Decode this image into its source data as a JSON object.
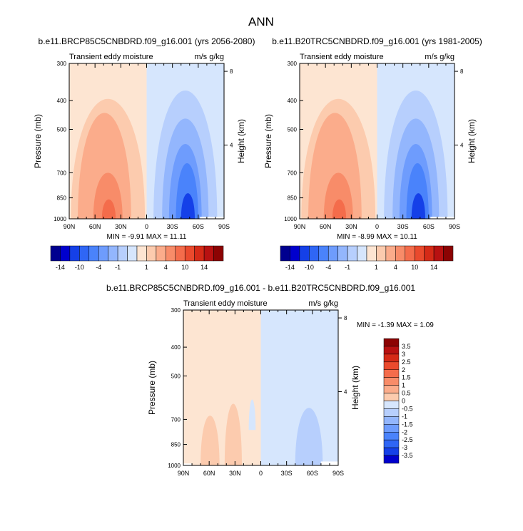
{
  "page_title": "ANN",
  "colors": {
    "neg": [
      "#00008f",
      "#0000cd",
      "#1540e8",
      "#2f66f5",
      "#4a83fb",
      "#6e9cfd",
      "#93b6fd",
      "#b7cffd",
      "#d6e6fd"
    ],
    "pos": [
      "#fde5d2",
      "#fccbae",
      "#fbac8b",
      "#f88c69",
      "#f46c4b",
      "#ea4a2d",
      "#d52a17",
      "#b81111",
      "#8c0303"
    ]
  },
  "chart_data": [
    {
      "type": "contour",
      "title": "b.e11.BRCP85C5CNBDRD.f09_g16.001 (yrs 2056-2080)",
      "left_string": "Transient eddy moisture",
      "right_string": "m/s g/kg",
      "ylabel": "Pressure (mb)",
      "ylabel_right": "Height (km)",
      "x_ticklabels": [
        "90N",
        "60N",
        "30N",
        "0",
        "30S",
        "60S",
        "90S"
      ],
      "x_values": [
        90,
        60,
        30,
        0,
        -30,
        -60,
        -90
      ],
      "y_ticklabels": [
        "300",
        "400",
        "500",
        "700",
        "850",
        "1000"
      ],
      "y_values": [
        300,
        400,
        500,
        700,
        850,
        1000
      ],
      "y_right_ticklabels": [
        "8",
        "4"
      ],
      "y_right_values": [
        8,
        4
      ],
      "min_label": "MIN = ",
      "min_value": "-9.91",
      "max_label": "MAX = ",
      "max_value": "11.11",
      "colorbar_labels": [
        "-14",
        "-10",
        "-4",
        "-1",
        "1",
        "4",
        "10",
        "14"
      ],
      "extremes": {
        "min": -9.91,
        "max": 11.11
      }
    },
    {
      "type": "contour",
      "title": "b.e11.B20TRC5CNBDRD.f09_g16.001 (yrs 1981-2005)",
      "left_string": "Transient eddy moisture",
      "right_string": "m/s g/kg",
      "ylabel": "Pressure (mb)",
      "ylabel_right": "Height (km)",
      "x_ticklabels": [
        "90N",
        "60N",
        "30N",
        "0",
        "30S",
        "60S",
        "90S"
      ],
      "x_values": [
        90,
        60,
        30,
        0,
        -30,
        -60,
        -90
      ],
      "y_ticklabels": [
        "300",
        "400",
        "500",
        "700",
        "850",
        "1000"
      ],
      "y_values": [
        300,
        400,
        500,
        700,
        850,
        1000
      ],
      "y_right_ticklabels": [
        "8",
        "4"
      ],
      "y_right_values": [
        8,
        4
      ],
      "min_label": "MIN = ",
      "min_value": "-8.99",
      "max_label": "MAX = ",
      "max_value": "10.11",
      "colorbar_labels": [
        "-14",
        "-10",
        "-4",
        "-1",
        "1",
        "4",
        "10",
        "14"
      ],
      "extremes": {
        "min": -8.99,
        "max": 10.11
      }
    },
    {
      "type": "contour",
      "title": "b.e11.BRCP85C5CNBDRD.f09_g16.001 - b.e11.B20TRC5CNBDRD.f09_g16.001",
      "left_string": "Transient eddy moisture",
      "right_string": "m/s g/kg",
      "ylabel": "Pressure (mb)",
      "ylabel_right": "Height (km)",
      "x_ticklabels": [
        "90N",
        "60N",
        "30N",
        "0",
        "30S",
        "60S",
        "90S"
      ],
      "x_values": [
        90,
        60,
        30,
        0,
        -30,
        -60,
        -90
      ],
      "y_ticklabels": [
        "300",
        "400",
        "500",
        "700",
        "850",
        "1000"
      ],
      "y_values": [
        300,
        400,
        500,
        700,
        850,
        1000
      ],
      "y_right_ticklabels": [
        "8",
        "4"
      ],
      "y_right_values": [
        8,
        4
      ],
      "min_label": "MIN = ",
      "min_value": "-1.39",
      "max_label": "MAX = ",
      "max_value": "1.09",
      "colorbar_labels": [
        "3.5",
        "3",
        "2.5",
        "2",
        "1.5",
        "1",
        "0.5",
        "0",
        "-0.5",
        "-1",
        "-1.5",
        "-2",
        "-2.5",
        "-3",
        "-3.5"
      ],
      "extremes": {
        "min": -1.39,
        "max": 1.09
      }
    }
  ]
}
